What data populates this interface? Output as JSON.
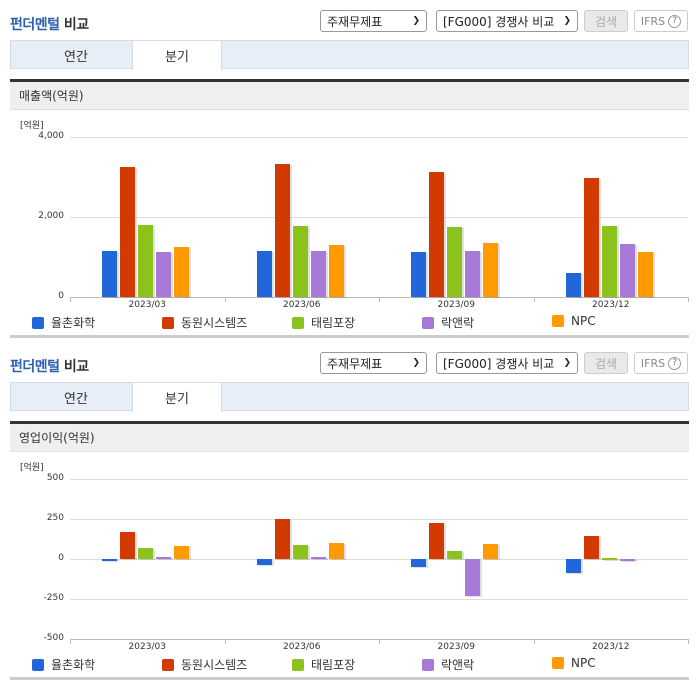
{
  "header": {
    "title_highlight": "펀더멘털",
    "title_rest": " 비교",
    "statement_select": "주재무제표",
    "compare_select": "[FG000] 경쟁사 비교",
    "search_button": "검색",
    "ifrs_button": "IFRS",
    "help_icon": "?"
  },
  "tabs": [
    {
      "label": "연간",
      "active": false
    },
    {
      "label": "분기",
      "active": true
    }
  ],
  "colors": {
    "율촌화학": "#2167d9",
    "동원시스템즈": "#d13a00",
    "태림포장": "#8cc21c",
    "락앤락": "#a979d8",
    "NPC": "#ff9a00"
  },
  "legend": [
    {
      "name": "율촌화학",
      "color": "#2167d9"
    },
    {
      "name": "동원시스템즈",
      "color": "#d13a00"
    },
    {
      "name": "태림포장",
      "color": "#8cc21c"
    },
    {
      "name": "락앤락",
      "color": "#a979d8"
    },
    {
      "name": "NPC",
      "color": "#ff9a00"
    }
  ],
  "sections": [
    {
      "metric_label": "매출액(억원)",
      "unit_label": "[억원]",
      "yticks": [
        "4,000",
        "2,000",
        "0"
      ]
    },
    {
      "metric_label": "영업이익(억원)",
      "unit_label": "[억원]",
      "yticks": [
        "500",
        "250",
        "0",
        "-250",
        "-500"
      ]
    }
  ],
  "chart_data": [
    {
      "type": "bar",
      "title": "매출액(억원)",
      "ylabel": "[억원]",
      "xlabel": "",
      "categories": [
        "2023/03",
        "2023/06",
        "2023/09",
        "2023/12"
      ],
      "ylim": [
        0,
        4000
      ],
      "yticks": [
        0,
        2000,
        4000
      ],
      "grid": true,
      "legend_position": "bottom",
      "series": [
        {
          "name": "율촌화학",
          "color": "#2167d9",
          "values": [
            1150,
            1150,
            1125,
            610
          ]
        },
        {
          "name": "동원시스템즈",
          "color": "#d13a00",
          "values": [
            3250,
            3320,
            3115,
            2985
          ]
        },
        {
          "name": "태림포장",
          "color": "#8cc21c",
          "values": [
            1800,
            1770,
            1750,
            1780
          ]
        },
        {
          "name": "락앤락",
          "color": "#a979d8",
          "values": [
            1120,
            1150,
            1150,
            1330
          ]
        },
        {
          "name": "NPC",
          "color": "#ff9a00",
          "values": [
            1250,
            1300,
            1350,
            1115
          ]
        }
      ]
    },
    {
      "type": "bar",
      "title": "영업이익(억원)",
      "ylabel": "[억원]",
      "xlabel": "",
      "categories": [
        "2023/03",
        "2023/06",
        "2023/09",
        "2023/12"
      ],
      "ylim": [
        -500,
        500
      ],
      "yticks": [
        -500,
        -250,
        0,
        250,
        500
      ],
      "grid": true,
      "legend_position": "bottom",
      "series": [
        {
          "name": "율촌화학",
          "color": "#2167d9",
          "values": [
            -10,
            -38,
            -48,
            -88
          ]
        },
        {
          "name": "동원시스템즈",
          "color": "#d13a00",
          "values": [
            171,
            250,
            227,
            141
          ]
        },
        {
          "name": "태림포장",
          "color": "#8cc21c",
          "values": [
            67,
            87,
            52,
            5
          ]
        },
        {
          "name": "락앤락",
          "color": "#a979d8",
          "values": [
            10,
            15,
            -234,
            -15
          ]
        },
        {
          "name": "NPC",
          "color": "#ff9a00",
          "values": [
            83,
            100,
            96,
            0
          ]
        }
      ]
    }
  ]
}
